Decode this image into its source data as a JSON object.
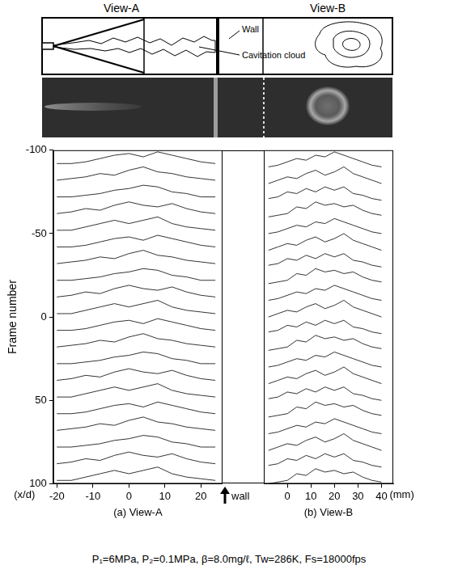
{
  "header": {
    "labels": [
      "View-A",
      "View-B"
    ]
  },
  "schematic": {
    "labels": {
      "wall": "Wall",
      "cloud": "Cavitation cloud"
    }
  },
  "chart_data": [
    {
      "type": "line",
      "title": "(a) View-A",
      "x_label": "(x/d)",
      "y_label": "Frame number",
      "xlim": [
        -21,
        26
      ],
      "xticks": [
        -20,
        -10,
        0,
        10,
        20
      ],
      "ylim": [
        -100,
        100
      ],
      "yticks": [
        -100,
        -50,
        0,
        50,
        100
      ],
      "grid": false,
      "x": [
        -20,
        -16,
        -12,
        -8,
        -4,
        0,
        4,
        8,
        12,
        16,
        20,
        24
      ],
      "series": [
        {
          "color": "#000000",
          "values": [
            -92,
            -92,
            -93,
            -95,
            -97,
            -98,
            -96,
            -99,
            -97,
            -95,
            -93,
            -92
          ]
        },
        {
          "color": "#000000",
          "values": [
            -82,
            -83,
            -84,
            -86,
            -85,
            -88,
            -90,
            -87,
            -86,
            -84,
            -83,
            -82
          ]
        },
        {
          "color": "#000000",
          "values": [
            -72,
            -72,
            -73,
            -74,
            -76,
            -77,
            -79,
            -78,
            -75,
            -74,
            -72,
            -72
          ]
        },
        {
          "color": "#000000",
          "values": [
            -62,
            -63,
            -65,
            -64,
            -67,
            -69,
            -67,
            -66,
            -68,
            -65,
            -63,
            -62
          ]
        },
        {
          "color": "#000000",
          "values": [
            -52,
            -52,
            -54,
            -56,
            -58,
            -56,
            -58,
            -60,
            -56,
            -54,
            -53,
            -52
          ]
        },
        {
          "color": "#000000",
          "values": [
            -42,
            -42,
            -43,
            -45,
            -47,
            -48,
            -46,
            -49,
            -47,
            -45,
            -43,
            -42
          ]
        },
        {
          "color": "#000000",
          "values": [
            -32,
            -33,
            -34,
            -36,
            -35,
            -38,
            -40,
            -37,
            -36,
            -34,
            -33,
            -32
          ]
        },
        {
          "color": "#000000",
          "values": [
            -22,
            -22,
            -23,
            -24,
            -26,
            -27,
            -29,
            -28,
            -25,
            -24,
            -22,
            -22
          ]
        },
        {
          "color": "#000000",
          "values": [
            -12,
            -13,
            -15,
            -14,
            -17,
            -19,
            -17,
            -16,
            -18,
            -15,
            -13,
            -12
          ]
        },
        {
          "color": "#000000",
          "values": [
            -2,
            -2,
            -4,
            -6,
            -8,
            -6,
            -8,
            -10,
            -6,
            -4,
            -3,
            -2
          ]
        },
        {
          "color": "#000000",
          "values": [
            8,
            8,
            7,
            5,
            3,
            2,
            4,
            1,
            3,
            5,
            7,
            8
          ]
        },
        {
          "color": "#000000",
          "values": [
            18,
            17,
            16,
            14,
            15,
            12,
            10,
            13,
            14,
            16,
            17,
            18
          ]
        },
        {
          "color": "#000000",
          "values": [
            28,
            28,
            27,
            26,
            24,
            23,
            21,
            22,
            25,
            26,
            28,
            28
          ]
        },
        {
          "color": "#000000",
          "values": [
            38,
            37,
            35,
            36,
            33,
            31,
            33,
            34,
            32,
            35,
            37,
            38
          ]
        },
        {
          "color": "#000000",
          "values": [
            48,
            48,
            46,
            44,
            42,
            44,
            42,
            40,
            44,
            46,
            47,
            48
          ]
        },
        {
          "color": "#000000",
          "values": [
            58,
            58,
            57,
            55,
            53,
            52,
            54,
            51,
            53,
            55,
            57,
            58
          ]
        },
        {
          "color": "#000000",
          "values": [
            68,
            67,
            66,
            64,
            65,
            62,
            60,
            63,
            64,
            66,
            67,
            68
          ]
        },
        {
          "color": "#000000",
          "values": [
            78,
            78,
            77,
            76,
            74,
            73,
            71,
            72,
            75,
            76,
            78,
            78
          ]
        },
        {
          "color": "#000000",
          "values": [
            88,
            87,
            85,
            86,
            83,
            81,
            83,
            84,
            82,
            85,
            87,
            88
          ]
        },
        {
          "color": "#000000",
          "values": [
            98,
            98,
            96,
            94,
            92,
            94,
            92,
            90,
            94,
            96,
            97,
            98
          ]
        }
      ]
    },
    {
      "type": "line",
      "title": "(b) View-B",
      "x_label": "(mm)",
      "tick_labels": "x",
      "xlim": [
        -10,
        45
      ],
      "xticks": [
        0,
        10,
        20,
        30,
        40
      ],
      "ylim": [
        -100,
        100
      ],
      "yticks": [
        -100,
        -50,
        0,
        50,
        100
      ],
      "grid": false,
      "x": [
        -8,
        -4,
        0,
        4,
        8,
        12,
        16,
        20,
        24,
        28,
        32,
        36,
        40
      ],
      "series": [
        {
          "color": "#000000",
          "values": [
            -90,
            -91,
            -93,
            -95,
            -94,
            -97,
            -96,
            -99,
            -97,
            -95,
            -93,
            -91,
            -90
          ]
        },
        {
          "color": "#000000",
          "values": [
            -80,
            -82,
            -84,
            -83,
            -86,
            -88,
            -85,
            -87,
            -90,
            -86,
            -84,
            -82,
            -80
          ]
        },
        {
          "color": "#000000",
          "values": [
            -71,
            -72,
            -75,
            -74,
            -77,
            -75,
            -78,
            -76,
            -78,
            -74,
            -73,
            -71,
            -70
          ]
        },
        {
          "color": "#000000",
          "values": [
            -60,
            -61,
            -62,
            -66,
            -65,
            -69,
            -67,
            -68,
            -66,
            -67,
            -64,
            -62,
            -61
          ]
        },
        {
          "color": "#000000",
          "values": [
            -50,
            -51,
            -53,
            -55,
            -54,
            -57,
            -56,
            -59,
            -57,
            -55,
            -53,
            -51,
            -50
          ]
        },
        {
          "color": "#000000",
          "values": [
            -40,
            -42,
            -44,
            -43,
            -46,
            -48,
            -45,
            -47,
            -50,
            -46,
            -44,
            -42,
            -40
          ]
        },
        {
          "color": "#000000",
          "values": [
            -31,
            -32,
            -35,
            -34,
            -37,
            -35,
            -38,
            -36,
            -38,
            -34,
            -33,
            -31,
            -30
          ]
        },
        {
          "color": "#000000",
          "values": [
            -20,
            -21,
            -22,
            -26,
            -25,
            -29,
            -27,
            -28,
            -26,
            -27,
            -24,
            -22,
            -21
          ]
        },
        {
          "color": "#000000",
          "values": [
            -10,
            -11,
            -13,
            -15,
            -14,
            -17,
            -16,
            -19,
            -17,
            -15,
            -13,
            -11,
            -10
          ]
        },
        {
          "color": "#000000",
          "values": [
            0,
            -2,
            -4,
            -3,
            -6,
            -8,
            -5,
            -7,
            -10,
            -6,
            -4,
            -2,
            0
          ]
        },
        {
          "color": "#000000",
          "values": [
            9,
            8,
            5,
            6,
            3,
            5,
            2,
            4,
            2,
            6,
            7,
            9,
            10
          ]
        },
        {
          "color": "#000000",
          "values": [
            20,
            19,
            18,
            14,
            15,
            11,
            13,
            12,
            14,
            13,
            16,
            18,
            19
          ]
        },
        {
          "color": "#000000",
          "values": [
            30,
            29,
            27,
            25,
            26,
            23,
            24,
            21,
            23,
            25,
            27,
            29,
            30
          ]
        },
        {
          "color": "#000000",
          "values": [
            40,
            38,
            36,
            37,
            34,
            32,
            35,
            33,
            30,
            34,
            36,
            38,
            40
          ]
        },
        {
          "color": "#000000",
          "values": [
            49,
            48,
            45,
            46,
            43,
            45,
            42,
            44,
            42,
            46,
            47,
            49,
            50
          ]
        },
        {
          "color": "#000000",
          "values": [
            60,
            59,
            58,
            54,
            55,
            51,
            53,
            52,
            54,
            53,
            56,
            58,
            59
          ]
        },
        {
          "color": "#000000",
          "values": [
            70,
            69,
            67,
            65,
            66,
            63,
            64,
            61,
            63,
            65,
            67,
            69,
            70
          ]
        },
        {
          "color": "#000000",
          "values": [
            80,
            78,
            76,
            77,
            74,
            72,
            75,
            73,
            70,
            74,
            76,
            78,
            80
          ]
        },
        {
          "color": "#000000",
          "values": [
            89,
            88,
            85,
            86,
            83,
            85,
            82,
            84,
            82,
            86,
            87,
            89,
            90
          ]
        },
        {
          "color": "#000000",
          "values": [
            100,
            99,
            98,
            94,
            95,
            91,
            93,
            92,
            94,
            93,
            96,
            98,
            99
          ]
        }
      ]
    }
  ],
  "wall_label": "wall",
  "caption": "P₁=6MPa, P₂=0.1MPa, β=8.0mg/ℓ, Tw=286K, Fs=18000fps"
}
